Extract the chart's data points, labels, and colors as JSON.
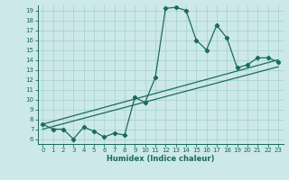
{
  "xlabel": "Humidex (Indice chaleur)",
  "bg_color": "#cce8e8",
  "line_color": "#1a6b5a",
  "grid_color": "#aad4d4",
  "ylim": [
    5.5,
    19.5
  ],
  "xlim": [
    -0.5,
    23.5
  ],
  "yticks": [
    6,
    7,
    8,
    9,
    10,
    11,
    12,
    13,
    14,
    15,
    16,
    17,
    18,
    19
  ],
  "xticks": [
    0,
    1,
    2,
    3,
    4,
    5,
    6,
    7,
    8,
    9,
    10,
    11,
    12,
    13,
    14,
    15,
    16,
    17,
    18,
    19,
    20,
    21,
    22,
    23
  ],
  "series1_x": [
    0,
    1,
    2,
    3,
    4,
    5,
    6,
    7,
    8,
    9,
    10,
    11,
    12,
    13,
    14,
    15,
    16,
    17,
    18,
    19,
    20,
    21,
    22,
    23
  ],
  "series1_y": [
    7.5,
    7.0,
    7.0,
    6.0,
    7.2,
    6.8,
    6.2,
    6.6,
    6.4,
    10.2,
    9.7,
    12.2,
    19.2,
    19.3,
    19.0,
    16.0,
    15.0,
    17.5,
    16.2,
    13.2,
    13.5,
    14.2,
    14.2,
    13.8
  ],
  "line1_x": [
    0,
    23
  ],
  "line1_y": [
    7.0,
    13.3
  ],
  "line2_x": [
    0,
    23
  ],
  "line2_y": [
    7.5,
    14.0
  ]
}
